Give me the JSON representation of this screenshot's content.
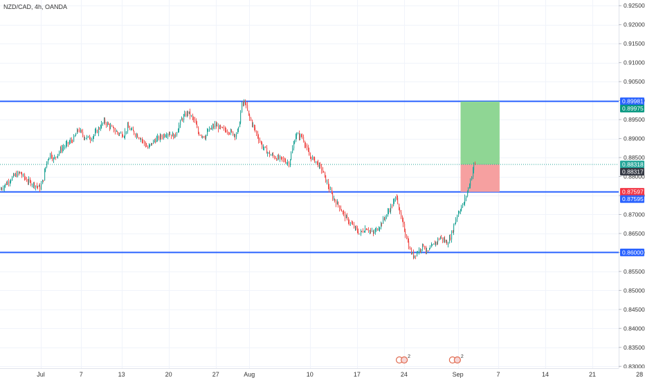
{
  "chart_data": {
    "type": "candlestick",
    "title": "NZD/CAD, 4h, OANDA",
    "ylim": [
      0.8295,
      0.9265
    ],
    "y_ticks": [
      "0.92500",
      "0.92000",
      "0.91500",
      "0.91000",
      "0.90500",
      "0.90000",
      "0.89500",
      "0.89000",
      "0.88500",
      "0.88000",
      "0.87500",
      "0.87000",
      "0.86500",
      "0.86000",
      "0.85500",
      "0.85000",
      "0.84500",
      "0.84000",
      "0.83500",
      "0.83000"
    ],
    "x_ticks": [
      {
        "label": "Jul",
        "day": 0
      },
      {
        "label": "7",
        "day": 6
      },
      {
        "label": "13",
        "day": 12
      },
      {
        "label": "20",
        "day": 19
      },
      {
        "label": "27",
        "day": 26
      },
      {
        "label": "Aug",
        "day": 31
      },
      {
        "label": "10",
        "day": 40
      },
      {
        "label": "17",
        "day": 47
      },
      {
        "label": "24",
        "day": 54
      },
      {
        "label": "Sep",
        "day": 62
      },
      {
        "label": "7",
        "day": 68
      },
      {
        "label": "14",
        "day": 75
      },
      {
        "label": "21",
        "day": 82
      },
      {
        "label": "28",
        "day": 89
      }
    ],
    "horizontal_levels": [
      {
        "name": "resistance",
        "value": 0.89981,
        "label": "0.89981"
      },
      {
        "name": "support",
        "value": 0.87595,
        "label": "0.87595"
      },
      {
        "name": "lower-support",
        "value": 0.86,
        "label": "0.86000"
      }
    ],
    "position": {
      "entry": 0.88318,
      "target": 0.89975,
      "stop": 0.87597,
      "start_day": 62.4,
      "end_day": 68.2
    },
    "price_badges": [
      {
        "label": "0.89981",
        "value": 0.89981,
        "color": "#2962ff"
      },
      {
        "label": "0.89975",
        "value": 0.89975,
        "color": "#089981"
      },
      {
        "label": "0.88318",
        "value": 0.88318,
        "color": "#26a69a"
      },
      {
        "label": "0.88317",
        "value": 0.88317,
        "color": "#363a45"
      },
      {
        "label": "0.87597",
        "value": 0.87597,
        "color": "#f23645"
      },
      {
        "label": "0.87595",
        "value": 0.87595,
        "color": "#2962ff"
      },
      {
        "label": "0.86000",
        "value": 0.86,
        "color": "#2962ff"
      }
    ],
    "price_path": [
      [
        -6.0,
        0.8765
      ],
      [
        -5.0,
        0.8782
      ],
      [
        -4.0,
        0.88
      ],
      [
        -3.0,
        0.881
      ],
      [
        -2.0,
        0.879
      ],
      [
        -1.0,
        0.878
      ],
      [
        0.0,
        0.877
      ],
      [
        0.5,
        0.8795
      ],
      [
        1.0,
        0.884
      ],
      [
        1.5,
        0.886
      ],
      [
        2.0,
        0.8845
      ],
      [
        3.0,
        0.887
      ],
      [
        4.0,
        0.8885
      ],
      [
        5.0,
        0.89
      ],
      [
        5.7,
        0.8925
      ],
      [
        6.5,
        0.8905
      ],
      [
        7.5,
        0.89
      ],
      [
        8.5,
        0.892
      ],
      [
        9.5,
        0.8945
      ],
      [
        10.5,
        0.893
      ],
      [
        11.5,
        0.8915
      ],
      [
        12.5,
        0.891
      ],
      [
        13.0,
        0.893
      ],
      [
        14.0,
        0.8915
      ],
      [
        15.0,
        0.89
      ],
      [
        16.0,
        0.8875
      ],
      [
        17.0,
        0.8895
      ],
      [
        18.0,
        0.8905
      ],
      [
        19.0,
        0.8915
      ],
      [
        20.0,
        0.8905
      ],
      [
        21.0,
        0.895
      ],
      [
        22.0,
        0.897
      ],
      [
        23.0,
        0.8945
      ],
      [
        23.5,
        0.8915
      ],
      [
        24.5,
        0.8905
      ],
      [
        25.0,
        0.892
      ],
      [
        26.0,
        0.8935
      ],
      [
        27.0,
        0.8925
      ],
      [
        28.0,
        0.892
      ],
      [
        29.0,
        0.891
      ],
      [
        29.5,
        0.8925
      ],
      [
        30.0,
        0.899
      ],
      [
        30.5,
        0.8995
      ],
      [
        31.0,
        0.896
      ],
      [
        32.0,
        0.892
      ],
      [
        33.0,
        0.888
      ],
      [
        34.0,
        0.886
      ],
      [
        35.0,
        0.885
      ],
      [
        36.0,
        0.8845
      ],
      [
        37.0,
        0.8835
      ],
      [
        38.0,
        0.891
      ],
      [
        39.0,
        0.8905
      ],
      [
        39.5,
        0.888
      ],
      [
        40.0,
        0.8855
      ],
      [
        41.0,
        0.884
      ],
      [
        42.0,
        0.8815
      ],
      [
        42.5,
        0.879
      ],
      [
        43.5,
        0.8745
      ],
      [
        44.5,
        0.872
      ],
      [
        45.5,
        0.869
      ],
      [
        46.5,
        0.867
      ],
      [
        47.5,
        0.865
      ],
      [
        48.5,
        0.8665
      ],
      [
        49.5,
        0.865
      ],
      [
        50.5,
        0.867
      ],
      [
        51.5,
        0.87
      ],
      [
        52.5,
        0.873
      ],
      [
        53.0,
        0.875
      ],
      [
        53.5,
        0.87
      ],
      [
        54.5,
        0.864
      ],
      [
        55.0,
        0.8605
      ],
      [
        55.5,
        0.859
      ],
      [
        56.0,
        0.86
      ],
      [
        57.0,
        0.862
      ],
      [
        57.5,
        0.86
      ],
      [
        58.5,
        0.862
      ],
      [
        59.5,
        0.864
      ],
      [
        60.5,
        0.8625
      ],
      [
        61.0,
        0.864
      ],
      [
        62.0,
        0.87
      ],
      [
        63.0,
        0.873
      ],
      [
        63.5,
        0.876
      ],
      [
        64.0,
        0.879
      ],
      [
        64.5,
        0.8832
      ]
    ],
    "events": [
      {
        "label": "2",
        "day": 53.3
      },
      {
        "label": "2",
        "day": 61.2
      }
    ]
  }
}
